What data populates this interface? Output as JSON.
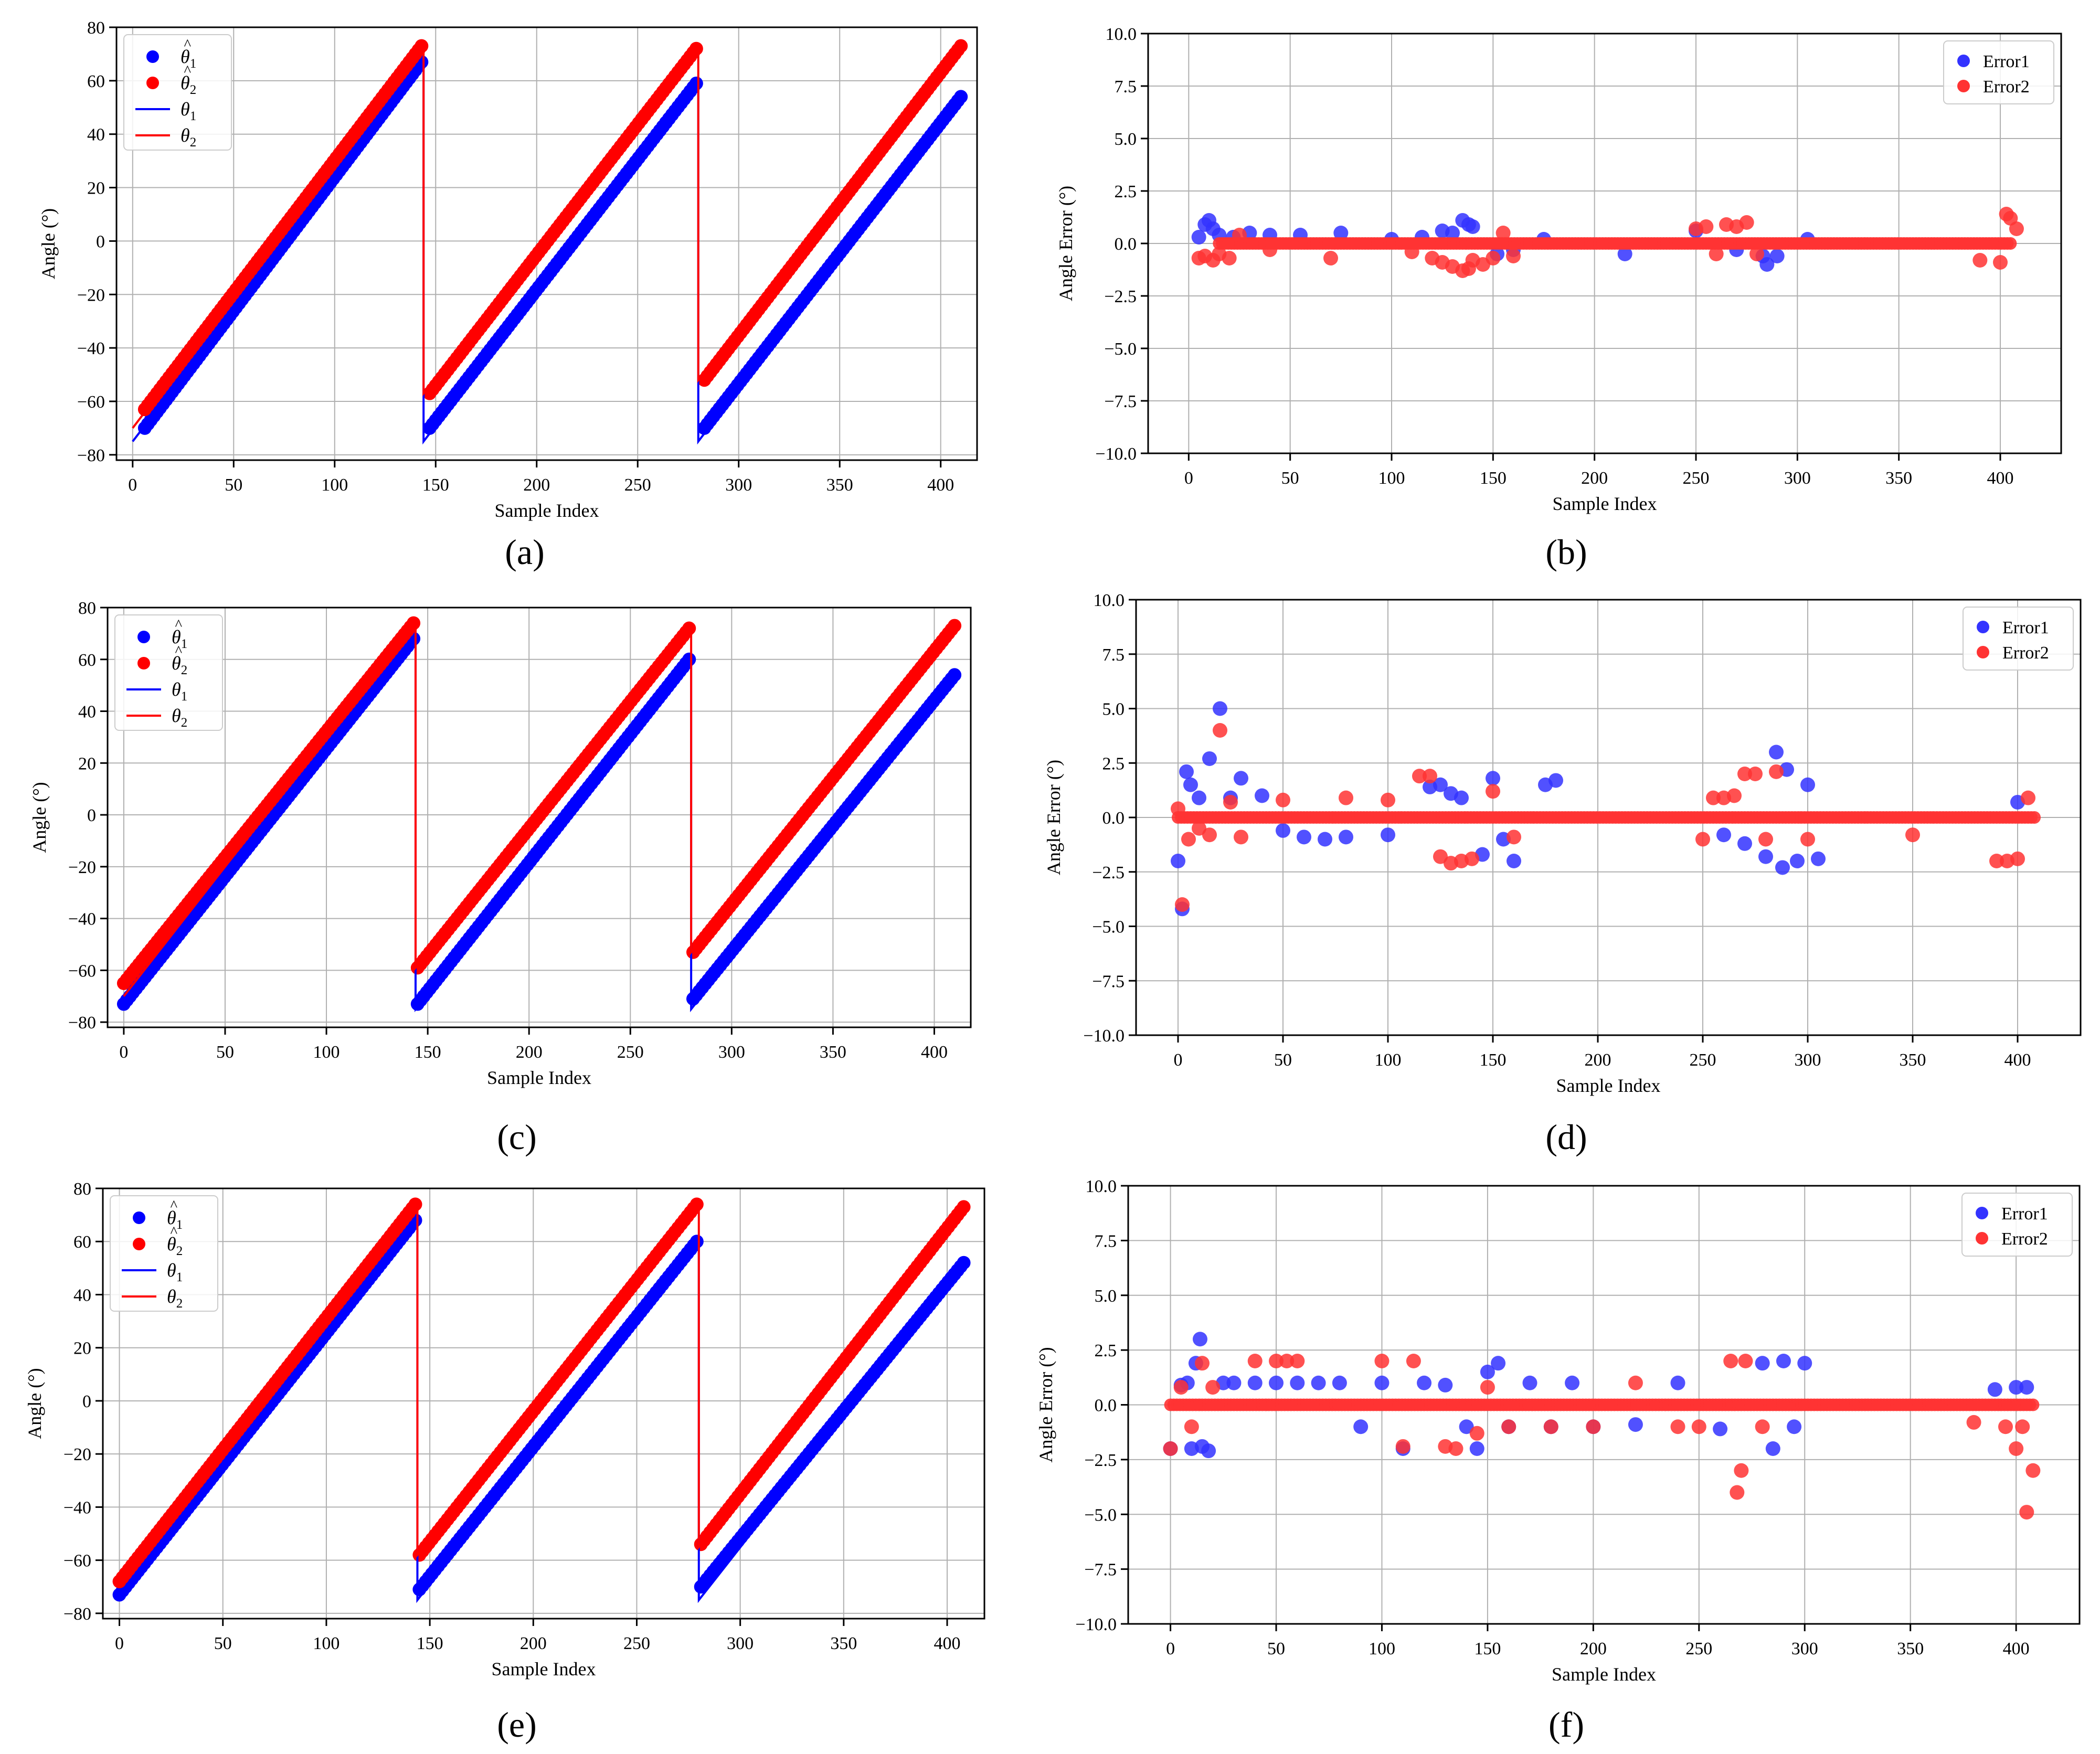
{
  "figure": {
    "panel_labels": [
      "(a)",
      "(b)",
      "(c)",
      "(d)",
      "(e)",
      "(f)"
    ],
    "colors": {
      "theta1": "#0000ff",
      "theta2": "#ff0000",
      "error1": "#3333ff",
      "error2": "#ff3333",
      "grid": "#b0b0b0"
    }
  },
  "chart_data": [
    {
      "id": "a",
      "type": "scatter",
      "title": "",
      "xlabel": "Sample Index",
      "ylabel": "Angle (°)",
      "xlim": [
        -8,
        418
      ],
      "ylim": [
        -82,
        80
      ],
      "xticks": [
        0,
        50,
        100,
        150,
        200,
        250,
        300,
        350,
        400
      ],
      "yticks": [
        -80,
        -60,
        -40,
        -20,
        0,
        20,
        40,
        60,
        80
      ],
      "legend": {
        "position": "top-left",
        "entries": [
          "θ̂1",
          "θ̂2",
          "θ1",
          "θ2"
        ]
      },
      "series": [
        {
          "name": "θ̂1",
          "kind": "scatter",
          "color": "#0000ff",
          "segments": [
            {
              "x0": 6,
              "x1": 143,
              "y0": -70,
              "y1": 67
            },
            {
              "x0": 147,
              "x1": 279,
              "y0": -70,
              "y1": 59
            },
            {
              "x0": 283,
              "x1": 410,
              "y0": -70,
              "y1": 54
            }
          ]
        },
        {
          "name": "θ̂2",
          "kind": "scatter",
          "color": "#ff0000",
          "segments": [
            {
              "x0": 6,
              "x1": 143,
              "y0": -63,
              "y1": 73
            },
            {
              "x0": 147,
              "x1": 279,
              "y0": -57,
              "y1": 72
            },
            {
              "x0": 283,
              "x1": 410,
              "y0": -52,
              "y1": 73
            }
          ]
        },
        {
          "name": "θ1",
          "kind": "line",
          "color": "#0000ff",
          "points": [
            [
              0,
              -75
            ],
            [
              144,
              67
            ],
            [
              144,
              -75
            ],
            [
              280,
              59
            ],
            [
              280,
              -75
            ],
            [
              410,
              54
            ]
          ]
        },
        {
          "name": "θ2",
          "kind": "line",
          "color": "#ff0000",
          "points": [
            [
              0,
              -70
            ],
            [
              144,
              73
            ],
            [
              144,
              -57
            ],
            [
              280,
              72
            ],
            [
              280,
              -52
            ],
            [
              410,
              73
            ]
          ]
        }
      ]
    },
    {
      "id": "b",
      "type": "scatter",
      "title": "",
      "xlabel": "Sample Index",
      "ylabel": "Angle Error (°)",
      "xlim": [
        -20,
        430
      ],
      "ylim": [
        -10,
        10
      ],
      "xticks": [
        0,
        50,
        100,
        150,
        200,
        250,
        300,
        350,
        400
      ],
      "yticks": [
        -10.0,
        -7.5,
        -5.0,
        -2.5,
        0.0,
        2.5,
        5.0,
        7.5,
        10.0
      ],
      "legend": {
        "position": "top-right",
        "entries": [
          "Error1",
          "Error2"
        ]
      },
      "series": [
        {
          "name": "Error1",
          "color": "#3333ff",
          "x": [
            5,
            8,
            10,
            12,
            15,
            22,
            30,
            40,
            55,
            75,
            100,
            115,
            125,
            130,
            135,
            138,
            140,
            152,
            160,
            175,
            215,
            250,
            270,
            283,
            285,
            290,
            305
          ],
          "y": [
            0.3,
            0.9,
            1.1,
            0.7,
            0.4,
            0.3,
            0.5,
            0.4,
            0.4,
            0.5,
            0.2,
            0.3,
            0.6,
            0.5,
            1.1,
            0.9,
            0.8,
            -0.5,
            -0.3,
            0.2,
            -0.5,
            0.6,
            -0.3,
            -0.6,
            -1.0,
            -0.6,
            0.2
          ]
        },
        {
          "name": "Error2",
          "color": "#ff3333",
          "x": [
            5,
            8,
            12,
            15,
            20,
            25,
            40,
            70,
            110,
            120,
            125,
            130,
            135,
            138,
            140,
            145,
            150,
            155,
            160,
            250,
            255,
            260,
            265,
            270,
            275,
            280,
            390,
            400,
            403,
            405,
            408
          ],
          "y": [
            -0.7,
            -0.6,
            -0.8,
            -0.5,
            -0.7,
            0.4,
            -0.3,
            -0.7,
            -0.4,
            -0.7,
            -0.9,
            -1.1,
            -1.3,
            -1.2,
            -0.8,
            -1.0,
            -0.7,
            0.5,
            -0.6,
            0.7,
            0.8,
            -0.5,
            0.9,
            0.8,
            1.0,
            -0.5,
            -0.8,
            -0.9,
            1.4,
            1.2,
            0.7
          ]
        },
        {
          "name": "Error2 baseline",
          "color": "#ff3333",
          "x0": 15,
          "x1": 405,
          "y": 0.0
        }
      ]
    },
    {
      "id": "c",
      "type": "scatter",
      "title": "",
      "xlabel": "Sample Index",
      "ylabel": "Angle (°)",
      "xlim": [
        -8,
        418
      ],
      "ylim": [
        -82,
        80
      ],
      "xticks": [
        0,
        50,
        100,
        150,
        200,
        250,
        300,
        350,
        400
      ],
      "yticks": [
        -80,
        -60,
        -40,
        -20,
        0,
        20,
        40,
        60,
        80
      ],
      "legend": {
        "position": "top-left",
        "entries": [
          "θ̂1",
          "θ̂2",
          "θ1",
          "θ2"
        ]
      },
      "series": [
        {
          "name": "θ̂1",
          "kind": "scatter",
          "color": "#0000ff",
          "segments": [
            {
              "x0": 0,
              "x1": 143,
              "y0": -73,
              "y1": 68
            },
            {
              "x0": 145,
              "x1": 279,
              "y0": -73,
              "y1": 60
            },
            {
              "x0": 281,
              "x1": 410,
              "y0": -71,
              "y1": 54
            }
          ]
        },
        {
          "name": "θ̂2",
          "kind": "scatter",
          "color": "#ff0000",
          "segments": [
            {
              "x0": 0,
              "x1": 143,
              "y0": -65,
              "y1": 74
            },
            {
              "x0": 145,
              "x1": 279,
              "y0": -59,
              "y1": 72
            },
            {
              "x0": 281,
              "x1": 410,
              "y0": -53,
              "y1": 73
            }
          ]
        },
        {
          "name": "θ1",
          "kind": "line",
          "color": "#0000ff",
          "points": [
            [
              0,
              -75
            ],
            [
              144,
              68
            ],
            [
              144,
              -75
            ],
            [
              280,
              60
            ],
            [
              280,
              -75
            ],
            [
              410,
              54
            ]
          ]
        },
        {
          "name": "θ2",
          "kind": "line",
          "color": "#ff0000",
          "points": [
            [
              0,
              -70
            ],
            [
              144,
              74
            ],
            [
              144,
              -59
            ],
            [
              280,
              72
            ],
            [
              280,
              -53
            ],
            [
              410,
              73
            ]
          ]
        }
      ]
    },
    {
      "id": "d",
      "type": "scatter",
      "title": "",
      "xlabel": "Sample Index",
      "ylabel": "Angle Error (°)",
      "xlim": [
        -20,
        430
      ],
      "ylim": [
        -10,
        10
      ],
      "xticks": [
        0,
        50,
        100,
        150,
        200,
        250,
        300,
        350,
        400
      ],
      "yticks": [
        -10.0,
        -7.5,
        -5.0,
        -2.5,
        0.0,
        2.5,
        5.0,
        7.5,
        10.0
      ],
      "legend": {
        "position": "top-right",
        "entries": [
          "Error1",
          "Error2"
        ]
      },
      "series": [
        {
          "name": "Error1",
          "color": "#3333ff",
          "x": [
            0,
            2,
            4,
            6,
            10,
            15,
            20,
            25,
            30,
            40,
            50,
            60,
            70,
            80,
            100,
            120,
            125,
            130,
            135,
            145,
            150,
            155,
            160,
            175,
            180,
            260,
            270,
            280,
            285,
            288,
            290,
            295,
            300,
            305,
            400
          ],
          "y": [
            -2.0,
            -4.2,
            2.1,
            1.5,
            0.9,
            2.7,
            5.0,
            0.9,
            1.8,
            1.0,
            -0.6,
            -0.9,
            -1.0,
            -0.9,
            -0.8,
            1.4,
            1.5,
            1.1,
            0.9,
            -1.7,
            1.8,
            -1.0,
            -2.0,
            1.5,
            1.7,
            -0.8,
            -1.2,
            -1.8,
            3.0,
            -2.3,
            2.2,
            -2.0,
            1.5,
            -1.9,
            0.7
          ]
        },
        {
          "name": "Error2",
          "color": "#ff3333",
          "x": [
            0,
            2,
            5,
            10,
            15,
            20,
            25,
            30,
            50,
            80,
            100,
            115,
            120,
            125,
            130,
            135,
            140,
            150,
            160,
            250,
            255,
            260,
            265,
            270,
            275,
            280,
            285,
            300,
            350,
            390,
            395,
            400,
            405
          ],
          "y": [
            0.4,
            -4.0,
            -1.0,
            -0.5,
            -0.8,
            4.0,
            0.7,
            -0.9,
            0.8,
            0.9,
            0.8,
            1.9,
            1.9,
            -1.8,
            -2.1,
            -2.0,
            -1.9,
            1.2,
            -0.9,
            -1.0,
            0.9,
            0.9,
            1.0,
            2.0,
            2.0,
            -1.0,
            2.1,
            -1.0,
            -0.8,
            -2.0,
            -2.0,
            -1.9,
            0.9
          ]
        },
        {
          "name": "Error2 baseline",
          "color": "#ff3333",
          "x0": 0,
          "x1": 408,
          "y": 0.0
        }
      ]
    },
    {
      "id": "e",
      "type": "scatter",
      "title": "",
      "xlabel": "Sample Index",
      "ylabel": "Angle (°)",
      "xlim": [
        -8,
        418
      ],
      "ylim": [
        -82,
        80
      ],
      "xticks": [
        0,
        50,
        100,
        150,
        200,
        250,
        300,
        350,
        400
      ],
      "yticks": [
        -80,
        -60,
        -40,
        -20,
        0,
        20,
        40,
        60,
        80
      ],
      "legend": {
        "position": "top-left",
        "entries": [
          "θ̂1",
          "θ̂2",
          "θ1",
          "θ2"
        ]
      },
      "series": [
        {
          "name": "θ̂1",
          "kind": "scatter",
          "color": "#0000ff",
          "segments": [
            {
              "x0": 0,
              "x1": 143,
              "y0": -73,
              "y1": 68
            },
            {
              "x0": 145,
              "x1": 279,
              "y0": -71,
              "y1": 60
            },
            {
              "x0": 281,
              "x1": 408,
              "y0": -70,
              "y1": 52
            }
          ]
        },
        {
          "name": "θ̂2",
          "kind": "scatter",
          "color": "#ff0000",
          "segments": [
            {
              "x0": 0,
              "x1": 143,
              "y0": -68,
              "y1": 74
            },
            {
              "x0": 145,
              "x1": 279,
              "y0": -58,
              "y1": 74
            },
            {
              "x0": 281,
              "x1": 408,
              "y0": -54,
              "y1": 73
            }
          ]
        },
        {
          "name": "θ1",
          "kind": "line",
          "color": "#0000ff",
          "points": [
            [
              0,
              -75
            ],
            [
              144,
              68
            ],
            [
              144,
              -75
            ],
            [
              280,
              60
            ],
            [
              280,
              -75
            ],
            [
              408,
              52
            ]
          ]
        },
        {
          "name": "θ2",
          "kind": "line",
          "color": "#ff0000",
          "points": [
            [
              0,
              -70
            ],
            [
              144,
              74
            ],
            [
              144,
              -58
            ],
            [
              280,
              74
            ],
            [
              280,
              -55
            ],
            [
              408,
              73
            ]
          ]
        }
      ]
    },
    {
      "id": "f",
      "type": "scatter",
      "title": "",
      "xlabel": "Sample Index",
      "ylabel": "Angle Error (°)",
      "xlim": [
        -20,
        430
      ],
      "ylim": [
        -10,
        10
      ],
      "xticks": [
        0,
        50,
        100,
        150,
        200,
        250,
        300,
        350,
        400
      ],
      "yticks": [
        -10.0,
        -7.5,
        -5.0,
        -2.5,
        0.0,
        2.5,
        5.0,
        7.5,
        10.0
      ],
      "legend": {
        "position": "top-right",
        "entries": [
          "Error1",
          "Error2"
        ]
      },
      "series": [
        {
          "name": "Error1",
          "color": "#3333ff",
          "x": [
            0,
            5,
            8,
            10,
            12,
            14,
            15,
            18,
            25,
            30,
            40,
            50,
            60,
            70,
            80,
            90,
            100,
            110,
            120,
            130,
            140,
            145,
            150,
            155,
            160,
            170,
            180,
            190,
            200,
            220,
            240,
            260,
            280,
            285,
            290,
            295,
            300,
            390,
            400,
            405
          ],
          "y": [
            -2.0,
            0.9,
            1.0,
            -2.0,
            1.9,
            3.0,
            -1.9,
            -2.1,
            1.0,
            1.0,
            1.0,
            1.0,
            1.0,
            1.0,
            1.0,
            -1.0,
            1.0,
            -2.0,
            1.0,
            0.9,
            -1.0,
            -2.0,
            1.5,
            1.9,
            -1.0,
            1.0,
            -1.0,
            1.0,
            -1.0,
            -0.9,
            1.0,
            -1.1,
            1.9,
            -2.0,
            2.0,
            -1.0,
            1.9,
            0.7,
            0.8,
            0.8
          ]
        },
        {
          "name": "Error2",
          "color": "#ff3333",
          "x": [
            0,
            5,
            10,
            15,
            20,
            40,
            50,
            55,
            60,
            100,
            110,
            115,
            130,
            135,
            145,
            150,
            160,
            180,
            200,
            220,
            240,
            250,
            265,
            268,
            270,
            272,
            280,
            380,
            395,
            400,
            403,
            405,
            408
          ],
          "y": [
            -2.0,
            0.8,
            -1.0,
            1.9,
            0.8,
            2.0,
            2.0,
            2.0,
            2.0,
            2.0,
            -1.9,
            2.0,
            -1.9,
            -2.0,
            -1.3,
            0.8,
            -1.0,
            -1.0,
            -1.0,
            1.0,
            -1.0,
            -1.0,
            2.0,
            -4.0,
            -3.0,
            2.0,
            -1.0,
            -0.8,
            -1.0,
            -2.0,
            -1.0,
            -4.9,
            -3.0
          ]
        },
        {
          "name": "Error2 baseline",
          "color": "#ff3333",
          "x0": 0,
          "x1": 408,
          "y": 0.0
        }
      ]
    }
  ]
}
